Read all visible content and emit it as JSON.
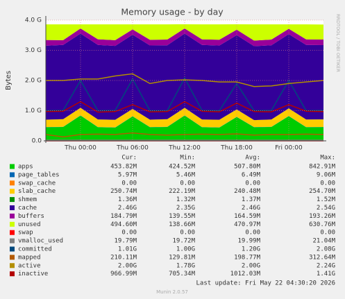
{
  "chart_data": {
    "type": "area",
    "title": "Memory usage - by day",
    "y_label": "Bytes",
    "side_text": "RRDTOOL / TOBI OETIKER",
    "last_update": "Last update: Fri May 22 04:30:20 2026",
    "footer": "Munin 2.0.57",
    "grid": true,
    "categories": [
      null,
      null,
      "Thu 00:00",
      null,
      null,
      "Thu 06:00",
      null,
      null,
      "Thu 12:00",
      null,
      null,
      "Thu 18:00",
      null,
      null,
      "Fri 00:00",
      null,
      null
    ],
    "ylim": [
      0,
      4000000000
    ],
    "yticks": [
      {
        "value": 0,
        "label": "0.0"
      },
      {
        "value": 1000000000,
        "label": "1.0 G"
      },
      {
        "value": 2000000000,
        "label": "2.0 G"
      },
      {
        "value": 3000000000,
        "label": "3.0 G"
      },
      {
        "value": 4000000000,
        "label": "4.0 G"
      }
    ],
    "legend_headers": [
      "Cur:",
      "Min:",
      "Avg:",
      "Max:"
    ],
    "series": [
      {
        "name": "apps",
        "color": "#00CC00",
        "style": "area",
        "stats": [
          "453.82M",
          "424.52M",
          "507.80M",
          "842.91M"
        ],
        "values": [
          450000000.0,
          460000000.0,
          840000000.0,
          450000000.0,
          440000000.0,
          810000000.0,
          450000000.0,
          460000000.0,
          840000000.0,
          450000000.0,
          440000000.0,
          790000000.0,
          450000000.0,
          460000000.0,
          820000000.0,
          450000000.0,
          454000000.0
        ]
      },
      {
        "name": "page_tables",
        "color": "#0066B3",
        "style": "area",
        "stats": [
          "5.97M",
          "5.46M",
          "6.49M",
          "9.06M"
        ],
        "values": [
          5900000.0,
          5900000.0,
          6100000.0,
          5900000.0,
          5900000.0,
          6200000.0,
          5900000.0,
          5900000.0,
          6100000.0,
          5900000.0,
          5900000.0,
          6300000.0,
          5900000.0,
          5900000.0,
          6100000.0,
          5900000.0,
          5970000.0
        ]
      },
      {
        "name": "swap_cache",
        "color": "#FF8000",
        "style": "area",
        "stats": [
          "0.00",
          "0.00",
          "0.00",
          "0.00"
        ],
        "values": [
          0,
          0,
          0,
          0,
          0,
          0,
          0,
          0,
          0,
          0,
          0,
          0,
          0,
          0,
          0,
          0,
          0
        ]
      },
      {
        "name": "slab_cache",
        "color": "#FFCC00",
        "style": "area",
        "stats": [
          "250.74M",
          "222.19M",
          "240.48M",
          "254.70M"
        ],
        "values": [
          245000000.0,
          250000000.0,
          248000000.0,
          252000000.0,
          250000000.0,
          240000000.0,
          245000000.0,
          250000000.0,
          247000000.0,
          250000000.0,
          252000000.0,
          245000000.0,
          230000000.0,
          240000000.0,
          250000000.0,
          250000000.0,
          251000000.0
        ]
      },
      {
        "name": "shmem",
        "color": "#008F00",
        "style": "area",
        "stats": [
          "1.36M",
          "1.32M",
          "1.37M",
          "1.52M"
        ],
        "values": [
          1400000.0,
          1400000.0,
          1400000.0,
          1400000.0,
          1400000.0,
          1400000.0,
          1400000.0,
          1400000.0,
          1400000.0,
          1400000.0,
          1400000.0,
          1400000.0,
          1400000.0,
          1400000.0,
          1400000.0,
          1400000.0,
          1360000.0
        ]
      },
      {
        "name": "cache",
        "color": "#330099",
        "style": "area",
        "stats": [
          "2.46G",
          "2.35G",
          "2.46G",
          "2.54G"
        ],
        "values": [
          2450000000.0,
          2460000000.0,
          2460000000.0,
          2470000000.0,
          2450000000.0,
          2460000000.0,
          2460000000.0,
          2450000000.0,
          2460000000.0,
          2470000000.0,
          2460000000.0,
          2460000000.0,
          2450000000.0,
          2460000000.0,
          2460000000.0,
          2470000000.0,
          2460000000.0
        ]
      },
      {
        "name": "buffers",
        "color": "#990099",
        "style": "area",
        "stats": [
          "184.79M",
          "139.55M",
          "164.59M",
          "193.26M"
        ],
        "values": [
          190000000.0,
          160000000.0,
          170000000.0,
          185000000.0,
          190000000.0,
          175000000.0,
          185000000.0,
          190000000.0,
          170000000.0,
          185000000.0,
          190000000.0,
          180000000.0,
          185000000.0,
          190000000.0,
          175000000.0,
          185000000.0,
          185000000.0
        ]
      },
      {
        "name": "unused",
        "color": "#CCFF00",
        "style": "area",
        "stats": [
          "494.60M",
          "138.66M",
          "470.97M",
          "630.76M"
        ],
        "values": [
          518000000.0,
          523000000.0,
          135000000.0,
          496000000.0,
          523000000.0,
          168000000.0,
          513000000.0,
          503000000.0,
          139000000.0,
          498000000.0,
          511000000.0,
          178000000.0,
          538000000.0,
          503000000.0,
          148000000.0,
          498000000.0,
          495000000.0
        ]
      },
      {
        "name": "swap",
        "color": "#FF0000",
        "style": "line",
        "stats": [
          "0.00",
          "0.00",
          "0.00",
          "0.00"
        ],
        "values": [
          0,
          0,
          0,
          0,
          0,
          0,
          0,
          0,
          0,
          0,
          0,
          0,
          0,
          0,
          0,
          0,
          0
        ]
      },
      {
        "name": "vmalloc_used",
        "color": "#808080",
        "style": "line",
        "stats": [
          "19.79M",
          "19.72M",
          "19.99M",
          "21.04M"
        ],
        "values": [
          19800000.0,
          19800000.0,
          20000000.0,
          19800000.0,
          19800000.0,
          21000000.0,
          19800000.0,
          19800000.0,
          20000000.0,
          19800000.0,
          19800000.0,
          20000000.0,
          19800000.0,
          19800000.0,
          20000000.0,
          19800000.0,
          19790000.0
        ]
      },
      {
        "name": "committed",
        "color": "#00487D",
        "style": "line",
        "stats": [
          "1.01G",
          "1.00G",
          "1.20G",
          "2.08G"
        ],
        "values": [
          1000000000.0,
          1010000000.0,
          2000000000.0,
          1000000000.0,
          1010000000.0,
          2050000000.0,
          1000000000.0,
          1000000000.0,
          2080000000.0,
          1010000000.0,
          1000000000.0,
          1900000000.0,
          1000000000.0,
          1010000000.0,
          2000000000.0,
          1000000000.0,
          1010000000.0
        ]
      },
      {
        "name": "mapped",
        "color": "#B35A00",
        "style": "line",
        "stats": [
          "210.11M",
          "129.81M",
          "198.77M",
          "312.64M"
        ],
        "values": [
          210000000.0,
          130000000.0,
          210000000.0,
          220000000.0,
          210000000.0,
          260000000.0,
          210000000.0,
          190000000.0,
          210000000.0,
          220000000.0,
          210000000.0,
          230000000.0,
          190000000.0,
          210000000.0,
          210000000.0,
          220000000.0,
          210000000.0
        ]
      },
      {
        "name": "active",
        "color": "#B38F00",
        "style": "line",
        "stats": [
          "2.00G",
          "1.78G",
          "2.00G",
          "2.24G"
        ],
        "values": [
          2000000000.0,
          2000000000.0,
          2050000000.0,
          2050000000.0,
          2150000000.0,
          2220000000.0,
          1900000000.0,
          2000000000.0,
          2020000000.0,
          2000000000.0,
          1950000000.0,
          1950000000.0,
          1800000000.0,
          1820000000.0,
          1900000000.0,
          1950000000.0,
          2000000000.0
        ]
      },
      {
        "name": "inactive",
        "color": "#B30000",
        "style": "line",
        "stats": [
          "966.99M",
          "705.34M",
          "1012.03M",
          "1.41G"
        ],
        "values": [
          970000000.0,
          980000000.0,
          1300000000.0,
          950000000.0,
          970000000.0,
          1200000000.0,
          960000000.0,
          970000000.0,
          1300000000.0,
          980000000.0,
          960000000.0,
          1250000000.0,
          970000000.0,
          960000000.0,
          1200000000.0,
          980000000.0,
          967000000.0
        ]
      }
    ]
  }
}
